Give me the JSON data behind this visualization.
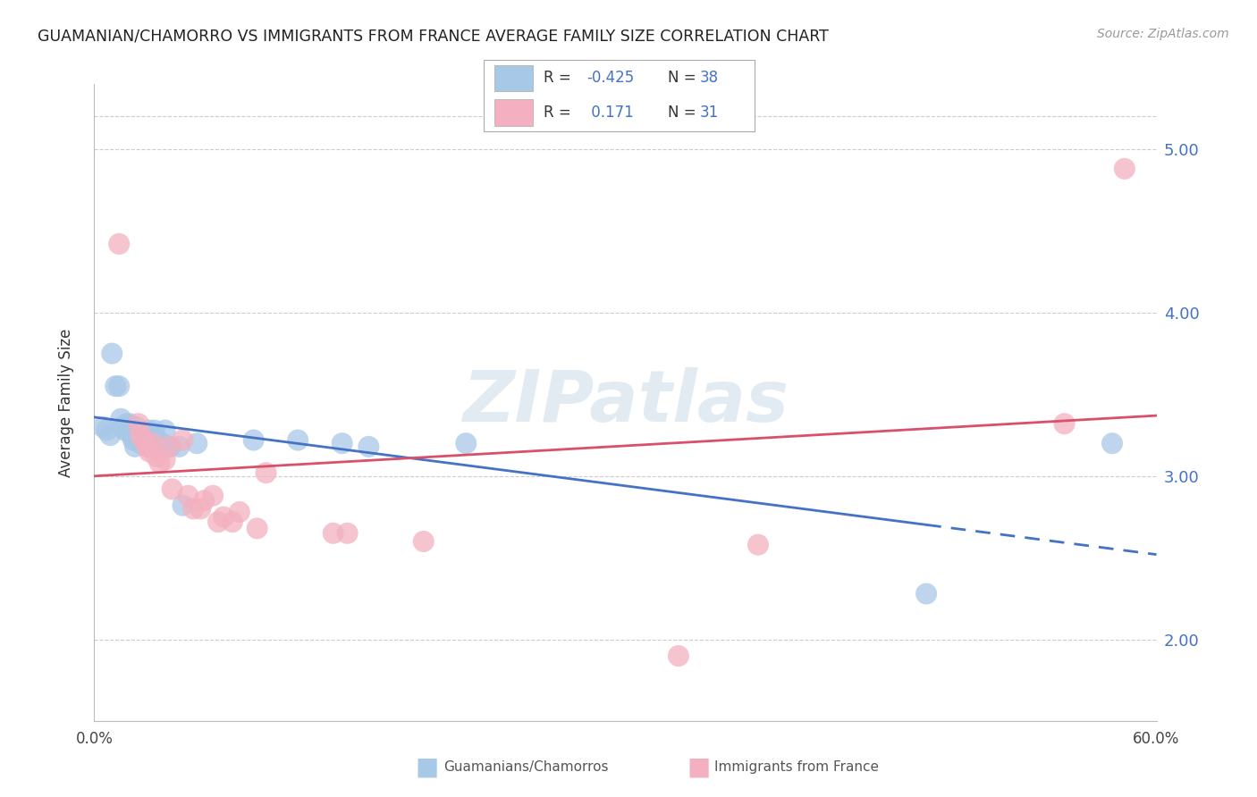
{
  "title": "GUAMANIAN/CHAMORRO VS IMMIGRANTS FROM FRANCE AVERAGE FAMILY SIZE CORRELATION CHART",
  "source": "Source: ZipAtlas.com",
  "ylabel": "Average Family Size",
  "xlim": [
    0.0,
    0.6
  ],
  "ylim": [
    1.5,
    5.4
  ],
  "yticks": [
    2.0,
    3.0,
    4.0,
    5.0
  ],
  "legend_r_blue": "-0.425",
  "legend_n_blue": "38",
  "legend_r_pink": "0.171",
  "legend_n_pink": "31",
  "blue_color": "#a8c8e8",
  "pink_color": "#f4b0c0",
  "blue_line_color": "#4472c4",
  "pink_line_color": "#d9506a",
  "watermark": "ZIPatlas",
  "blue_scatter": [
    [
      0.005,
      3.3
    ],
    [
      0.007,
      3.28
    ],
    [
      0.009,
      3.25
    ],
    [
      0.01,
      3.75
    ],
    [
      0.012,
      3.55
    ],
    [
      0.014,
      3.55
    ],
    [
      0.015,
      3.35
    ],
    [
      0.016,
      3.3
    ],
    [
      0.017,
      3.28
    ],
    [
      0.018,
      3.32
    ],
    [
      0.019,
      3.28
    ],
    [
      0.02,
      3.32
    ],
    [
      0.021,
      3.25
    ],
    [
      0.022,
      3.22
    ],
    [
      0.023,
      3.18
    ],
    [
      0.024,
      3.3
    ],
    [
      0.025,
      3.25
    ],
    [
      0.026,
      3.2
    ],
    [
      0.028,
      3.22
    ],
    [
      0.029,
      3.25
    ],
    [
      0.03,
      3.18
    ],
    [
      0.031,
      3.28
    ],
    [
      0.033,
      3.22
    ],
    [
      0.034,
      3.28
    ],
    [
      0.036,
      3.22
    ],
    [
      0.038,
      3.2
    ],
    [
      0.04,
      3.28
    ],
    [
      0.043,
      3.18
    ],
    [
      0.048,
      3.18
    ],
    [
      0.05,
      2.82
    ],
    [
      0.058,
      3.2
    ],
    [
      0.09,
      3.22
    ],
    [
      0.115,
      3.22
    ],
    [
      0.14,
      3.2
    ],
    [
      0.155,
      3.18
    ],
    [
      0.21,
      3.2
    ],
    [
      0.47,
      2.28
    ],
    [
      0.575,
      3.2
    ]
  ],
  "pink_scatter": [
    [
      0.014,
      4.42
    ],
    [
      0.025,
      3.32
    ],
    [
      0.026,
      3.25
    ],
    [
      0.028,
      3.22
    ],
    [
      0.03,
      3.18
    ],
    [
      0.031,
      3.15
    ],
    [
      0.033,
      3.2
    ],
    [
      0.035,
      3.12
    ],
    [
      0.037,
      3.08
    ],
    [
      0.04,
      3.1
    ],
    [
      0.042,
      3.18
    ],
    [
      0.044,
      2.92
    ],
    [
      0.05,
      3.22
    ],
    [
      0.053,
      2.88
    ],
    [
      0.056,
      2.8
    ],
    [
      0.06,
      2.8
    ],
    [
      0.062,
      2.85
    ],
    [
      0.067,
      2.88
    ],
    [
      0.07,
      2.72
    ],
    [
      0.073,
      2.75
    ],
    [
      0.078,
      2.72
    ],
    [
      0.082,
      2.78
    ],
    [
      0.092,
      2.68
    ],
    [
      0.097,
      3.02
    ],
    [
      0.135,
      2.65
    ],
    [
      0.143,
      2.65
    ],
    [
      0.186,
      2.6
    ],
    [
      0.33,
      1.9
    ],
    [
      0.375,
      2.58
    ],
    [
      0.548,
      3.32
    ],
    [
      0.582,
      4.88
    ]
  ],
  "blue_line": {
    "x0": 0.0,
    "y0": 3.36,
    "x1": 0.6,
    "y1": 2.52,
    "solid_end": 0.47
  },
  "pink_line": {
    "x0": 0.0,
    "y0": 3.0,
    "x1": 0.6,
    "y1": 3.37
  }
}
